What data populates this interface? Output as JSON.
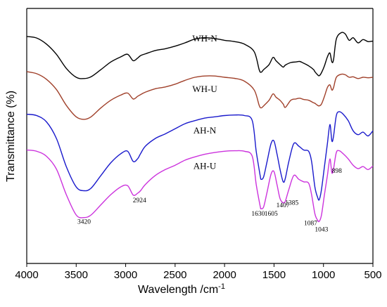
{
  "chart_data": {
    "type": "line",
    "title": "",
    "xlabel": "Wavelength /cm",
    "xlabel_sup": "-1",
    "ylabel": "Transmittance (%)",
    "xlim": [
      4000,
      500
    ],
    "x_reversed": true,
    "x_ticks": [
      4000,
      3500,
      3000,
      2500,
      2000,
      1500,
      1000,
      500
    ],
    "y_ticks": false,
    "series": [
      {
        "name": "WH-N",
        "color": "#000000",
        "points": [
          [
            4000,
            0.89
          ],
          [
            3900,
            0.884
          ],
          [
            3800,
            0.86
          ],
          [
            3700,
            0.82
          ],
          [
            3600,
            0.765
          ],
          [
            3500,
            0.73
          ],
          [
            3420,
            0.725
          ],
          [
            3350,
            0.732
          ],
          [
            3250,
            0.76
          ],
          [
            3150,
            0.79
          ],
          [
            3050,
            0.81
          ],
          [
            2980,
            0.82
          ],
          [
            2924,
            0.795
          ],
          [
            2880,
            0.805
          ],
          [
            2850,
            0.815
          ],
          [
            2800,
            0.822
          ],
          [
            2700,
            0.835
          ],
          [
            2600,
            0.842
          ],
          [
            2500,
            0.852
          ],
          [
            2400,
            0.865
          ],
          [
            2300,
            0.88
          ],
          [
            2200,
            0.885
          ],
          [
            2100,
            0.882
          ],
          [
            2000,
            0.875
          ],
          [
            1900,
            0.87
          ],
          [
            1800,
            0.86
          ],
          [
            1700,
            0.83
          ],
          [
            1650,
            0.76
          ],
          [
            1630,
            0.75
          ],
          [
            1605,
            0.76
          ],
          [
            1550,
            0.78
          ],
          [
            1510,
            0.808
          ],
          [
            1480,
            0.795
          ],
          [
            1440,
            0.78
          ],
          [
            1407,
            0.77
          ],
          [
            1385,
            0.778
          ],
          [
            1330,
            0.788
          ],
          [
            1280,
            0.79
          ],
          [
            1240,
            0.792
          ],
          [
            1200,
            0.785
          ],
          [
            1150,
            0.775
          ],
          [
            1100,
            0.76
          ],
          [
            1087,
            0.752
          ],
          [
            1060,
            0.74
          ],
          [
            1043,
            0.736
          ],
          [
            1020,
            0.748
          ],
          [
            990,
            0.775
          ],
          [
            960,
            0.81
          ],
          [
            935,
            0.825
          ],
          [
            915,
            0.79
          ],
          [
            898,
            0.8
          ],
          [
            870,
            0.88
          ],
          [
            820,
            0.905
          ],
          [
            780,
            0.9
          ],
          [
            740,
            0.875
          ],
          [
            700,
            0.885
          ],
          [
            650,
            0.865
          ],
          [
            600,
            0.878
          ],
          [
            550,
            0.87
          ],
          [
            500,
            0.872
          ]
        ]
      },
      {
        "name": "WH-U",
        "color": "#a0402a",
        "points": [
          [
            4000,
            0.752
          ],
          [
            3900,
            0.744
          ],
          [
            3800,
            0.722
          ],
          [
            3700,
            0.682
          ],
          [
            3600,
            0.62
          ],
          [
            3500,
            0.575
          ],
          [
            3420,
            0.565
          ],
          [
            3350,
            0.575
          ],
          [
            3250,
            0.61
          ],
          [
            3150,
            0.64
          ],
          [
            3050,
            0.66
          ],
          [
            2980,
            0.668
          ],
          [
            2924,
            0.645
          ],
          [
            2880,
            0.655
          ],
          [
            2850,
            0.662
          ],
          [
            2800,
            0.672
          ],
          [
            2700,
            0.685
          ],
          [
            2600,
            0.692
          ],
          [
            2500,
            0.703
          ],
          [
            2400,
            0.718
          ],
          [
            2300,
            0.73
          ],
          [
            2200,
            0.735
          ],
          [
            2100,
            0.735
          ],
          [
            2000,
            0.73
          ],
          [
            1900,
            0.726
          ],
          [
            1800,
            0.715
          ],
          [
            1700,
            0.68
          ],
          [
            1650,
            0.62
          ],
          [
            1630,
            0.61
          ],
          [
            1605,
            0.618
          ],
          [
            1550,
            0.64
          ],
          [
            1510,
            0.665
          ],
          [
            1480,
            0.652
          ],
          [
            1440,
            0.64
          ],
          [
            1407,
            0.625
          ],
          [
            1385,
            0.612
          ],
          [
            1330,
            0.64
          ],
          [
            1280,
            0.645
          ],
          [
            1240,
            0.648
          ],
          [
            1200,
            0.643
          ],
          [
            1150,
            0.64
          ],
          [
            1100,
            0.63
          ],
          [
            1087,
            0.628
          ],
          [
            1060,
            0.62
          ],
          [
            1043,
            0.618
          ],
          [
            1020,
            0.625
          ],
          [
            990,
            0.655
          ],
          [
            960,
            0.69
          ],
          [
            935,
            0.7
          ],
          [
            915,
            0.68
          ],
          [
            898,
            0.69
          ],
          [
            870,
            0.73
          ],
          [
            820,
            0.742
          ],
          [
            780,
            0.74
          ],
          [
            740,
            0.73
          ],
          [
            700,
            0.732
          ],
          [
            650,
            0.725
          ],
          [
            600,
            0.73
          ],
          [
            550,
            0.728
          ],
          [
            500,
            0.73
          ]
        ]
      },
      {
        "name": "AH-N",
        "color": "#1a1acc",
        "points": [
          [
            4000,
            0.585
          ],
          [
            3900,
            0.58
          ],
          [
            3800,
            0.555
          ],
          [
            3700,
            0.49
          ],
          [
            3600,
            0.38
          ],
          [
            3500,
            0.3
          ],
          [
            3420,
            0.285
          ],
          [
            3350,
            0.295
          ],
          [
            3250,
            0.345
          ],
          [
            3150,
            0.395
          ],
          [
            3050,
            0.43
          ],
          [
            2980,
            0.44
          ],
          [
            2924,
            0.4
          ],
          [
            2880,
            0.41
          ],
          [
            2850,
            0.43
          ],
          [
            2800,
            0.46
          ],
          [
            2700,
            0.49
          ],
          [
            2600,
            0.508
          ],
          [
            2500,
            0.528
          ],
          [
            2400,
            0.548
          ],
          [
            2300,
            0.56
          ],
          [
            2200,
            0.57
          ],
          [
            2100,
            0.575
          ],
          [
            2000,
            0.58
          ],
          [
            1900,
            0.582
          ],
          [
            1800,
            0.58
          ],
          [
            1720,
            0.56
          ],
          [
            1680,
            0.44
          ],
          [
            1640,
            0.345
          ],
          [
            1630,
            0.33
          ],
          [
            1605,
            0.34
          ],
          [
            1570,
            0.4
          ],
          [
            1530,
            0.47
          ],
          [
            1500,
            0.48
          ],
          [
            1470,
            0.43
          ],
          [
            1440,
            0.37
          ],
          [
            1407,
            0.32
          ],
          [
            1385,
            0.335
          ],
          [
            1350,
            0.4
          ],
          [
            1300,
            0.47
          ],
          [
            1250,
            0.46
          ],
          [
            1200,
            0.445
          ],
          [
            1150,
            0.44
          ],
          [
            1120,
            0.4
          ],
          [
            1087,
            0.3
          ],
          [
            1060,
            0.26
          ],
          [
            1043,
            0.25
          ],
          [
            1020,
            0.29
          ],
          [
            990,
            0.38
          ],
          [
            960,
            0.47
          ],
          [
            935,
            0.545
          ],
          [
            915,
            0.48
          ],
          [
            898,
            0.5
          ],
          [
            870,
            0.58
          ],
          [
            840,
            0.595
          ],
          [
            800,
            0.585
          ],
          [
            750,
            0.56
          ],
          [
            700,
            0.52
          ],
          [
            650,
            0.505
          ],
          [
            600,
            0.515
          ],
          [
            550,
            0.5
          ],
          [
            500,
            0.52
          ]
        ]
      },
      {
        "name": "AH-U",
        "color": "#cc33dd",
        "points": [
          [
            4000,
            0.445
          ],
          [
            3900,
            0.44
          ],
          [
            3800,
            0.42
          ],
          [
            3700,
            0.37
          ],
          [
            3600,
            0.27
          ],
          [
            3500,
            0.19
          ],
          [
            3420,
            0.18
          ],
          [
            3350,
            0.19
          ],
          [
            3250,
            0.23
          ],
          [
            3150,
            0.27
          ],
          [
            3050,
            0.3
          ],
          [
            2980,
            0.305
          ],
          [
            2924,
            0.268
          ],
          [
            2880,
            0.275
          ],
          [
            2850,
            0.285
          ],
          [
            2800,
            0.31
          ],
          [
            2700,
            0.345
          ],
          [
            2600,
            0.368
          ],
          [
            2500,
            0.385
          ],
          [
            2400,
            0.405
          ],
          [
            2300,
            0.418
          ],
          [
            2200,
            0.428
          ],
          [
            2100,
            0.435
          ],
          [
            2000,
            0.44
          ],
          [
            1900,
            0.442
          ],
          [
            1800,
            0.44
          ],
          [
            1720,
            0.42
          ],
          [
            1680,
            0.31
          ],
          [
            1640,
            0.225
          ],
          [
            1630,
            0.215
          ],
          [
            1605,
            0.222
          ],
          [
            1570,
            0.28
          ],
          [
            1530,
            0.35
          ],
          [
            1500,
            0.36
          ],
          [
            1470,
            0.31
          ],
          [
            1440,
            0.255
          ],
          [
            1407,
            0.238
          ],
          [
            1385,
            0.245
          ],
          [
            1350,
            0.29
          ],
          [
            1300,
            0.345
          ],
          [
            1250,
            0.33
          ],
          [
            1200,
            0.32
          ],
          [
            1150,
            0.315
          ],
          [
            1120,
            0.27
          ],
          [
            1087,
            0.195
          ],
          [
            1060,
            0.17
          ],
          [
            1043,
            0.165
          ],
          [
            1020,
            0.19
          ],
          [
            990,
            0.27
          ],
          [
            960,
            0.345
          ],
          [
            935,
            0.41
          ],
          [
            915,
            0.355
          ],
          [
            898,
            0.372
          ],
          [
            870,
            0.435
          ],
          [
            840,
            0.442
          ],
          [
            800,
            0.43
          ],
          [
            750,
            0.41
          ],
          [
            700,
            0.385
          ],
          [
            650,
            0.372
          ],
          [
            600,
            0.38
          ],
          [
            550,
            0.368
          ],
          [
            500,
            0.382
          ]
        ]
      }
    ],
    "series_labels": [
      {
        "name": "WH-N",
        "x": 2200,
        "y": 0.87
      },
      {
        "name": "WH-U",
        "x": 2200,
        "y": 0.672
      },
      {
        "name": "AH-N",
        "x": 2200,
        "y": 0.51
      },
      {
        "name": "AH-U",
        "x": 2200,
        "y": 0.37
      }
    ],
    "annotations": [
      {
        "label": "3420",
        "x": 3420,
        "y": 0.155
      },
      {
        "label": "2924",
        "x": 2860,
        "y": 0.24
      },
      {
        "label": "1630",
        "x": 1660,
        "y": 0.188
      },
      {
        "label": "1605",
        "x": 1530,
        "y": 0.188
      },
      {
        "label": "1407",
        "x": 1410,
        "y": 0.22
      },
      {
        "label": "1385",
        "x": 1320,
        "y": 0.23
      },
      {
        "label": "1087",
        "x": 1130,
        "y": 0.15
      },
      {
        "label": "1043",
        "x": 1020,
        "y": 0.125
      },
      {
        "label": "898",
        "x": 865,
        "y": 0.355
      }
    ]
  }
}
